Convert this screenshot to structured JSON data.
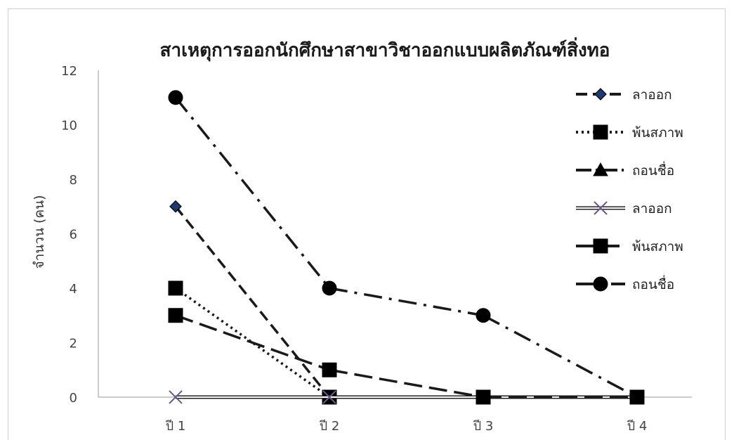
{
  "chart_data": {
    "type": "line",
    "title": "สาเหตุการออกนักศึกษาสาขาวิชาออกแบบผลิตภัณฑ์สิ่งทอ",
    "xlabel": "",
    "ylabel": "จำนวน (คน)",
    "categories": [
      "ปี 1",
      "ปี 2",
      "ปี 3",
      "ปี 4"
    ],
    "ylim": [
      0,
      12
    ],
    "yticks": [
      0,
      2,
      4,
      6,
      8,
      10,
      12
    ],
    "grid": false,
    "legend_position": "right",
    "series": [
      {
        "name": "ลาออก",
        "values": [
          7,
          0,
          null,
          null
        ],
        "color": "#1a1a1a",
        "marker": "diamond",
        "marker_fill": "#1f3a6e",
        "dash": "16 8"
      },
      {
        "name": "พ้นสภาพ",
        "values": [
          4,
          0,
          null,
          null
        ],
        "color": "#1a1a1a",
        "marker": "square",
        "marker_fill": "#000000",
        "dash": "3 5"
      },
      {
        "name": "ถอนชื่อ",
        "values": [
          null,
          null,
          null,
          null
        ],
        "color": "#1a1a1a",
        "marker": "triangle",
        "marker_fill": "#000000",
        "dash": "22 6 3 6"
      },
      {
        "name": "ลาออก",
        "values": [
          0,
          0,
          0,
          0
        ],
        "color": "#1a1a1a",
        "marker": "x",
        "marker_fill": "#6b5a8a",
        "dash": "",
        "double": true
      },
      {
        "name": "พ้นสภาพ",
        "values": [
          3,
          1,
          0,
          0
        ],
        "color": "#1a1a1a",
        "marker": "square",
        "marker_fill": "#000000",
        "dash": "26 10"
      },
      {
        "name": "ถอนชื่อ",
        "values": [
          11,
          4,
          3,
          0
        ],
        "color": "#1a1a1a",
        "marker": "circle",
        "marker_fill": "#000000",
        "dash": "26 10 4 10"
      }
    ]
  }
}
